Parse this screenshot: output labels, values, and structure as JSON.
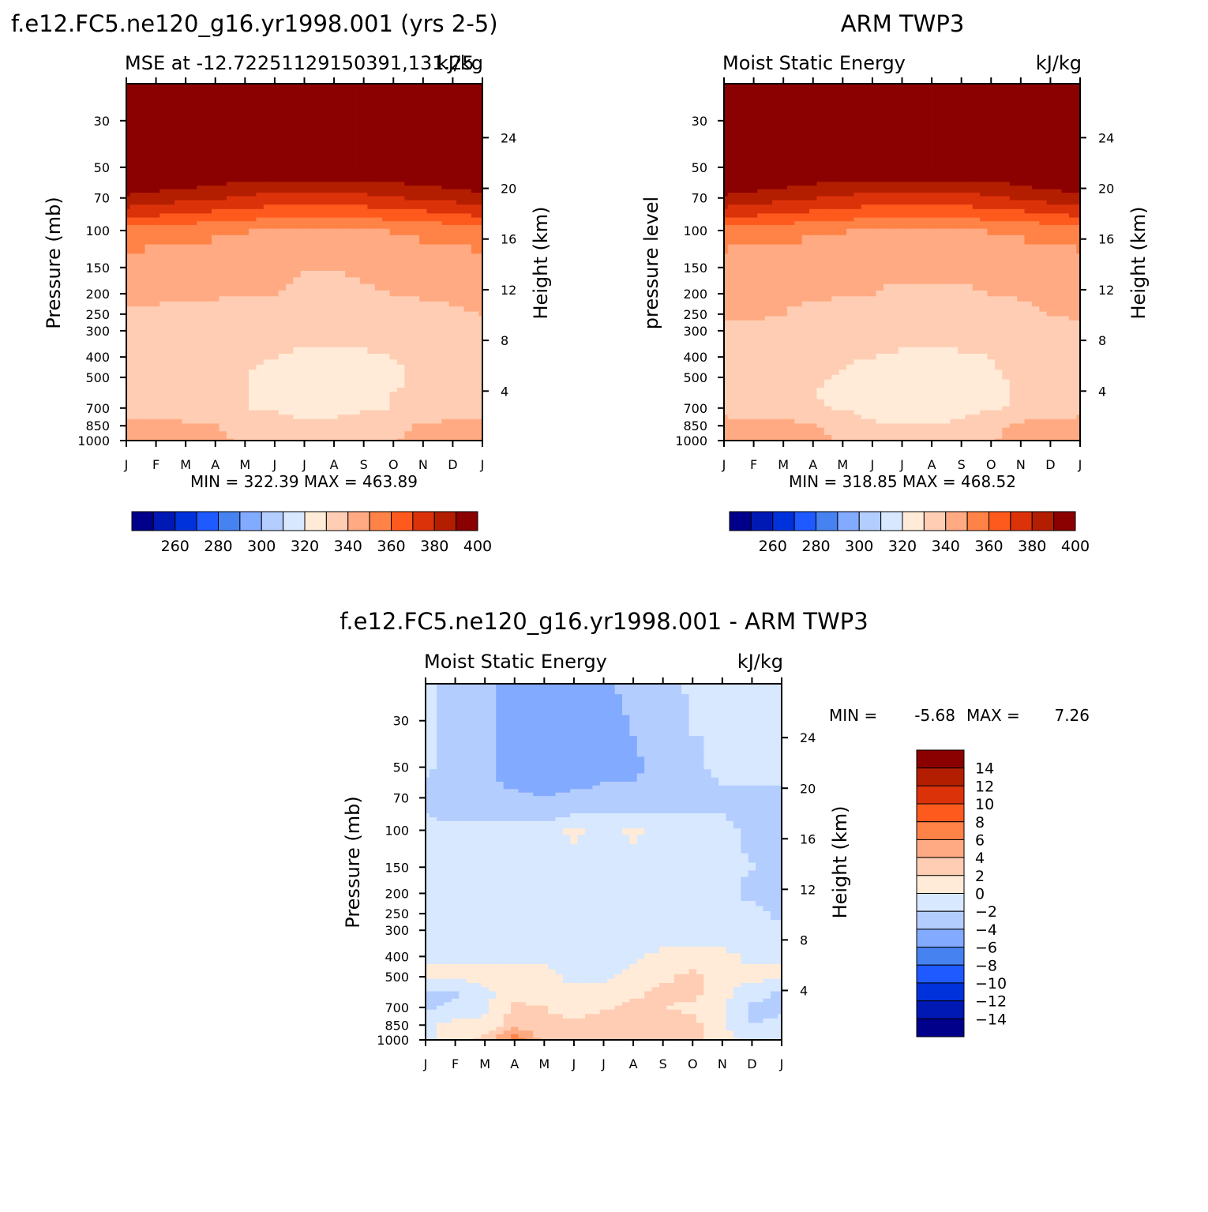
{
  "colors": {
    "diverging_palette": [
      "#00008b",
      "#0019b4",
      "#0032dc",
      "#1e5aff",
      "#4682f0",
      "#82aaff",
      "#b4cdff",
      "#d7e8ff",
      "#ffebd7",
      "#ffcdb4",
      "#ffaa82",
      "#ff8246",
      "#ff5a1e",
      "#dc320a",
      "#b41e00",
      "#8b0000"
    ]
  },
  "chart_data": [
    {
      "type": "heatmap",
      "title": "f.e12.FC5.ne120_g16.yr1998.001 (yrs 2-5)",
      "left_string": "MSE at -12.72251129150391,131.25",
      "right_string": "kJ/kg",
      "ylabel": "Pressure (mb)",
      "y2label": "Height (km)",
      "x_ticks": [
        "J",
        "F",
        "M",
        "A",
        "M",
        "J",
        "J",
        "A",
        "S",
        "O",
        "N",
        "D",
        "J"
      ],
      "y_ticks": [
        "30",
        "50",
        "70",
        "100",
        "150",
        "200",
        "250",
        "300",
        "400",
        "500",
        "700",
        "850",
        "1000"
      ],
      "y2_ticks": [
        "24",
        "20",
        "16",
        "12",
        "8",
        "4"
      ],
      "stats": "MIN = 322.39 MAX = 463.89",
      "levels": [
        250,
        260,
        270,
        280,
        290,
        300,
        310,
        320,
        330,
        340,
        350,
        360,
        370,
        380,
        390,
        400
      ],
      "colorbar_labels": [
        "260",
        "280",
        "300",
        "320",
        "340",
        "360",
        "380",
        "400"
      ],
      "field": [
        [
          460,
          460,
          460,
          460,
          460,
          460,
          460,
          460,
          460,
          460,
          460,
          460,
          460
        ],
        [
          410,
          410,
          410,
          410,
          410,
          410,
          410,
          410,
          410,
          410,
          410,
          410,
          410
        ],
        [
          398,
          395,
          393,
          391,
          388,
          386,
          385,
          385,
          387,
          389,
          391,
          393,
          396
        ],
        [
          388,
          385,
          383,
          381,
          378,
          376,
          375,
          375,
          377,
          379,
          381,
          383,
          386
        ],
        [
          372,
          370,
          368,
          366,
          364,
          362,
          361,
          361,
          362,
          364,
          366,
          368,
          371
        ],
        [
          355,
          354,
          353,
          352,
          350,
          349,
          348,
          348,
          349,
          350,
          352,
          353,
          355
        ],
        [
          346,
          345,
          344,
          343,
          342,
          341,
          340,
          340,
          341,
          342,
          344,
          345,
          346
        ],
        [
          342,
          341,
          341,
          341,
          340,
          340,
          339,
          339,
          339,
          340,
          341,
          341,
          342
        ],
        [
          339,
          339,
          338,
          337,
          336,
          335,
          334,
          334,
          334,
          335,
          337,
          339,
          340
        ],
        [
          336,
          336,
          335,
          334,
          333,
          332,
          332,
          332,
          332,
          333,
          334,
          335,
          336
        ],
        [
          335,
          334,
          333,
          332,
          331,
          330,
          329,
          329,
          329,
          330,
          331,
          333,
          334
        ],
        [
          333,
          333,
          332,
          331,
          330,
          328,
          328,
          327,
          328,
          329,
          331,
          332,
          333
        ],
        [
          333,
          333,
          332,
          331,
          330,
          329,
          328,
          327,
          328,
          330,
          331,
          332,
          333
        ],
        [
          334,
          334,
          333,
          332,
          330,
          329,
          328,
          328,
          329,
          330,
          332,
          333,
          334
        ],
        [
          343,
          343,
          342,
          340,
          336,
          333,
          331,
          331,
          334,
          337,
          341,
          343,
          343
        ],
        [
          346,
          346,
          345,
          342,
          338,
          333,
          331,
          330,
          334,
          339,
          343,
          346,
          346
        ]
      ]
    },
    {
      "type": "heatmap",
      "title": "ARM TWP3",
      "left_string": "Moist Static Energy",
      "right_string": "kJ/kg",
      "ylabel": "pressure level",
      "y2label": "Height (km)",
      "x_ticks": [
        "J",
        "F",
        "M",
        "A",
        "M",
        "J",
        "J",
        "A",
        "S",
        "O",
        "N",
        "D",
        "J"
      ],
      "y_ticks": [
        "30",
        "50",
        "70",
        "100",
        "150",
        "200",
        "250",
        "300",
        "400",
        "500",
        "700",
        "850",
        "1000"
      ],
      "y2_ticks": [
        "24",
        "20",
        "16",
        "12",
        "8",
        "4"
      ],
      "stats": "MIN = 318.85 MAX = 468.52",
      "levels": [
        250,
        260,
        270,
        280,
        290,
        300,
        310,
        320,
        330,
        340,
        350,
        360,
        370,
        380,
        390,
        400
      ],
      "colorbar_labels": [
        "260",
        "280",
        "300",
        "320",
        "340",
        "360",
        "380",
        "400"
      ],
      "field": [
        [
          465,
          465,
          465,
          465,
          465,
          465,
          465,
          465,
          465,
          465,
          465,
          465,
          465
        ],
        [
          410,
          410,
          410,
          410,
          410,
          410,
          410,
          410,
          410,
          410,
          410,
          410,
          410
        ],
        [
          397,
          395,
          393,
          390,
          388,
          386,
          385,
          385,
          386,
          388,
          391,
          394,
          397
        ],
        [
          388,
          385,
          383,
          380,
          378,
          376,
          375,
          375,
          376,
          378,
          381,
          384,
          387
        ],
        [
          372,
          370,
          368,
          366,
          364,
          362,
          361,
          361,
          362,
          364,
          366,
          368,
          371
        ],
        [
          355,
          354,
          353,
          352,
          350,
          349,
          348,
          348,
          349,
          350,
          352,
          353,
          355
        ],
        [
          345,
          344,
          343,
          343,
          342,
          341,
          341,
          341,
          341,
          342,
          343,
          344,
          345
        ],
        [
          342,
          342,
          341,
          341,
          341,
          340,
          339,
          339,
          339,
          340,
          341,
          342,
          342
        ],
        [
          341,
          341,
          340,
          338,
          336,
          335,
          334,
          334,
          335,
          336,
          338,
          340,
          341
        ],
        [
          338,
          338,
          337,
          336,
          334,
          333,
          332,
          332,
          333,
          334,
          336,
          337,
          338
        ],
        [
          335,
          335,
          334,
          333,
          331,
          330,
          329,
          329,
          329,
          330,
          332,
          334,
          335
        ],
        [
          334,
          333,
          332,
          331,
          329,
          327,
          326,
          326,
          327,
          329,
          331,
          333,
          334
        ],
        [
          334,
          333,
          332,
          330,
          328,
          325,
          322,
          322,
          325,
          328,
          331,
          333,
          334
        ],
        [
          335,
          334,
          333,
          331,
          329,
          327,
          326,
          326,
          327,
          329,
          331,
          334,
          335
        ],
        [
          345,
          345,
          344,
          341,
          336,
          331,
          330,
          330,
          332,
          337,
          342,
          345,
          345
        ],
        [
          348,
          347,
          346,
          343,
          338,
          333,
          330,
          330,
          333,
          339,
          344,
          347,
          348
        ]
      ]
    },
    {
      "type": "heatmap",
      "title": "f.e12.FC5.ne120_g16.yr1998.001 - ARM TWP3",
      "left_string": "Moist Static Energy",
      "right_string": "kJ/kg",
      "ylabel": "Pressure (mb)",
      "y2label": "Height (km)",
      "x_ticks": [
        "J",
        "F",
        "M",
        "A",
        "M",
        "J",
        "J",
        "A",
        "S",
        "O",
        "N",
        "D",
        "J"
      ],
      "y_ticks": [
        "30",
        "50",
        "70",
        "100",
        "150",
        "200",
        "250",
        "300",
        "400",
        "500",
        "700",
        "850",
        "1000"
      ],
      "y2_ticks": [
        "24",
        "20",
        "16",
        "12",
        "8",
        "4"
      ],
      "stats_min_label": "MIN =",
      "stats_min": "-5.68",
      "stats_max_label": "MAX =",
      "stats_max": "7.26",
      "levels": [
        -14,
        -12,
        -10,
        -8,
        -6,
        -4,
        -2,
        0,
        2,
        4,
        6,
        8,
        10,
        12,
        14
      ],
      "colorbar_labels": [
        "14",
        "12",
        "10",
        "8",
        "6",
        "4",
        "2",
        "0",
        "−2",
        "−4",
        "−6",
        "−8",
        "−10",
        "−12",
        "−14"
      ],
      "field": [
        [
          -1.5,
          -3,
          -3.5,
          -5,
          -5.5,
          -5.5,
          -5,
          -3,
          -3,
          -1.5,
          -1,
          -1,
          -1
        ],
        [
          -1.5,
          -3,
          -3.5,
          -5,
          -5.5,
          -5.5,
          -5,
          -4.5,
          -3,
          -2.5,
          -1.5,
          -1,
          -1
        ],
        [
          -2.5,
          -3,
          -3.5,
          -4.5,
          -5,
          -4.5,
          -4,
          -4,
          -3,
          -3,
          -2,
          -2,
          -2
        ],
        [
          -3,
          -3,
          -3.5,
          -3.5,
          -4,
          -3.5,
          -3.5,
          -3.5,
          -3.5,
          -3,
          -2.5,
          -2.5,
          -2.5
        ],
        [
          -2,
          -2.5,
          -2.5,
          -2.5,
          -2.5,
          -2,
          -2,
          -2,
          -2,
          -2,
          -2,
          -2.5,
          -2.5
        ],
        [
          -1.5,
          -1.5,
          -1.5,
          -1.5,
          -1.5,
          0.5,
          -1,
          0.5,
          -1,
          -1.5,
          -1.5,
          -2.5,
          -2.5
        ],
        [
          -1,
          -1,
          -1,
          -1,
          -1,
          -1,
          -1,
          -1,
          -1,
          -1,
          -1.5,
          -2,
          -2.5
        ],
        [
          -1,
          -1,
          -1,
          -1,
          -1,
          -1,
          -1,
          -1,
          -1,
          -1,
          -1.5,
          -2.5,
          -2.5
        ],
        [
          -1,
          -1,
          -1,
          -1,
          -1,
          -1,
          -1,
          -1,
          -1,
          -1,
          -1,
          -1.5,
          -2.5
        ],
        [
          -0.5,
          -1,
          -1,
          -1,
          -1,
          -1,
          -1,
          -1,
          -1,
          -1,
          -1,
          -1,
          -1.5
        ],
        [
          -0.5,
          -0.5,
          -0.5,
          -0.5,
          -0.5,
          -0.5,
          -0.5,
          -0.5,
          0.5,
          0.5,
          0.5,
          -0.5,
          -0.5
        ],
        [
          0.5,
          0.5,
          0.5,
          1,
          0.5,
          -0.5,
          -0.5,
          0.5,
          1.5,
          2.5,
          0.5,
          0.5,
          0.5
        ],
        [
          -2.5,
          -2.5,
          -0.5,
          1,
          0.5,
          0.5,
          0.5,
          1.5,
          2.5,
          2.5,
          0.5,
          -1,
          -2.5
        ],
        [
          -2.5,
          -1.5,
          -0.5,
          2.5,
          2,
          1,
          1.5,
          2.5,
          2,
          1.5,
          0.5,
          -2.5,
          -2.5
        ],
        [
          -0.5,
          0.5,
          0.5,
          3,
          2.5,
          2.5,
          3.5,
          3,
          3.5,
          2.5,
          0.5,
          -2,
          -1.5
        ],
        [
          -0.5,
          0.5,
          2.5,
          7,
          3.5,
          2.5,
          3,
          3.5,
          3,
          2.5,
          0.5,
          -0.5,
          -0.5
        ]
      ]
    }
  ]
}
